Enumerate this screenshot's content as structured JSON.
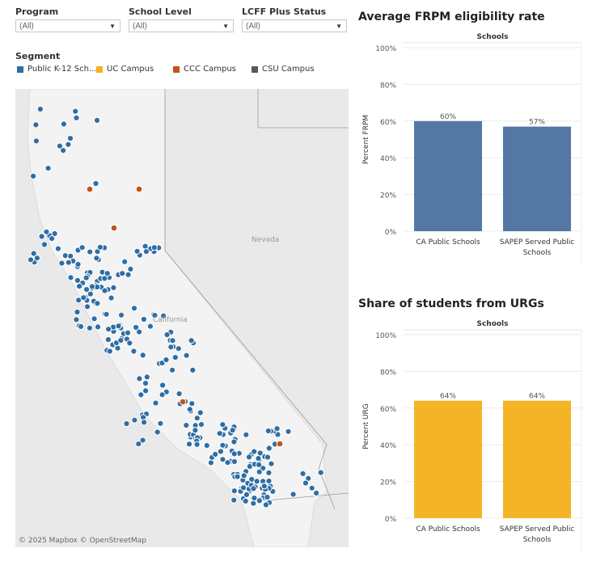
{
  "filters": [
    {
      "label": "Program",
      "value": "(All)"
    },
    {
      "label": "School Level",
      "value": "(All)"
    },
    {
      "label": "LCFF Plus Status",
      "value": "(All)"
    }
  ],
  "legend": {
    "title": "Segment",
    "items": [
      {
        "label": "Public K-12 Sch...",
        "color": "#2f6ea5"
      },
      {
        "label": "UC Campus",
        "color": "#f2b124"
      },
      {
        "label": "CCC Campus",
        "color": "#c25417"
      },
      {
        "label": "CSU Campus",
        "color": "#4f5c66"
      }
    ]
  },
  "map": {
    "labels": {
      "nevada": "Nevada",
      "california": "California"
    },
    "credit": "© 2025 Mapbox  © OpenStreetMap"
  },
  "chart_data": [
    {
      "type": "bar",
      "title": "Average FRPM eligibility rate",
      "column_header": "Schools",
      "ylabel": "Percent FRPM",
      "categories": [
        [
          "CA Public Schools"
        ],
        [
          "SAPEP Served Public",
          "Schools"
        ]
      ],
      "values": [
        60,
        57
      ],
      "value_labels": [
        "60%",
        "57%"
      ],
      "yticks": [
        0,
        20,
        40,
        60,
        80,
        100
      ],
      "ytick_labels": [
        "0%",
        "20%",
        "40%",
        "60%",
        "80%",
        "100%"
      ],
      "ylim": [
        0,
        100
      ],
      "color": "#5577a4"
    },
    {
      "type": "bar",
      "title": "Share of students from URGs",
      "column_header": "Schools",
      "ylabel": "Percent URG",
      "categories": [
        [
          "CA Public Schools"
        ],
        [
          "SAPEP Served Public",
          "Schools"
        ]
      ],
      "values": [
        64,
        64
      ],
      "value_labels": [
        "64%",
        "64%"
      ],
      "yticks": [
        0,
        20,
        40,
        60,
        80,
        100
      ],
      "ytick_labels": [
        "0%",
        "20%",
        "40%",
        "60%",
        "80%",
        "100%"
      ],
      "ylim": [
        0,
        100
      ],
      "color": "#f5b428"
    }
  ]
}
